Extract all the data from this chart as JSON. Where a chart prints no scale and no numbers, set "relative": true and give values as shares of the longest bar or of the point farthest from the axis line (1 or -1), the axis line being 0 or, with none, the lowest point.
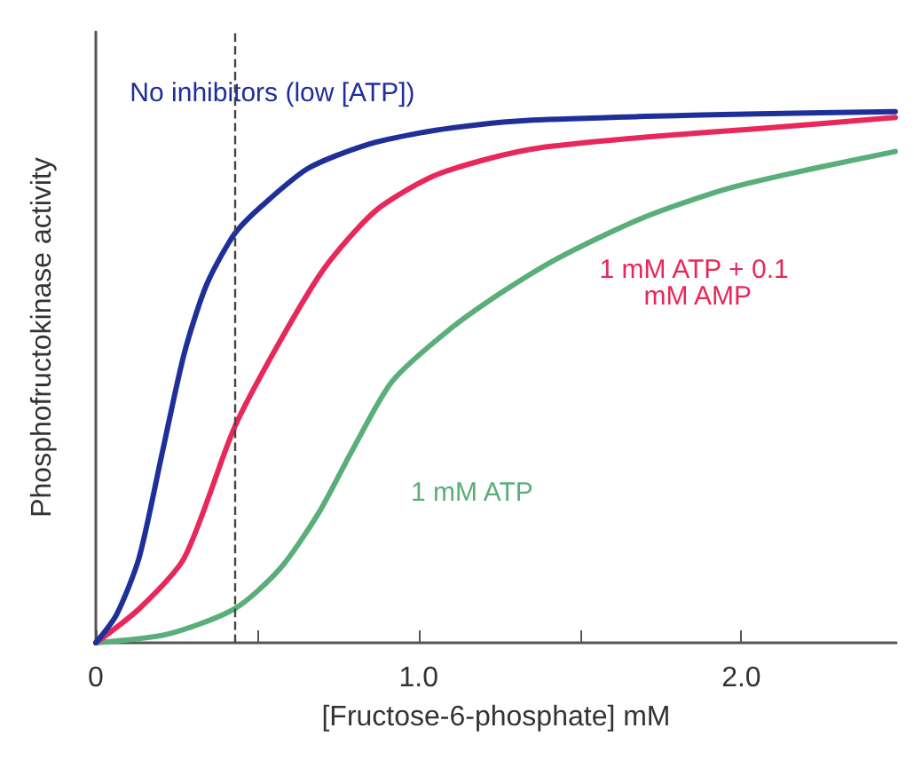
{
  "chart_data": {
    "type": "line",
    "xlabel": "[Fructose-6-phosphate] mM",
    "ylabel": "Phosphofructokinase activity",
    "relative": true,
    "grid": false,
    "legend": false,
    "marker": "none",
    "line_style": "solid",
    "xlim": [
      0,
      2.48
    ],
    "xticks": [
      0,
      {
        "value": 0.5,
        "label": null
      },
      {
        "value": 1,
        "label": "1.0"
      },
      {
        "value": 1.5,
        "label": null
      },
      {
        "value": 2,
        "label": "2.0"
      }
    ],
    "ref_lines": [
      {
        "axis": "x",
        "value": 0.43,
        "color": "#444444",
        "line_style": "dashed"
      }
    ],
    "series": [
      {
        "name": "1 mM ATP",
        "color": "#5aae7a",
        "x": [
          0,
          0.221,
          0.43,
          0.57,
          0.692,
          0.796,
          0.918,
          1.092,
          1.266,
          1.441,
          1.702,
          1.963,
          2.224,
          2.477
        ],
        "values": [
          0,
          0.016,
          0.064,
          0.139,
          0.246,
          0.364,
          0.492,
          0.588,
          0.663,
          0.727,
          0.802,
          0.856,
          0.893,
          0.925
        ]
      },
      {
        "name": "1 mM ATP + 0.1 mM AMP",
        "color": "#e8285a",
        "x": [
          0,
          0.134,
          0.274,
          0.43,
          0.57,
          0.709,
          0.866,
          1.04,
          1.214,
          1.389,
          1.702,
          2.05,
          2.477
        ],
        "values": [
          0,
          0.064,
          0.16,
          0.406,
          0.567,
          0.706,
          0.813,
          0.877,
          0.911,
          0.933,
          0.952,
          0.968,
          0.989
        ]
      },
      {
        "name": "No inhibitors (low [ATP])",
        "color": "#1f2f9a",
        "x": [
          0,
          0.064,
          0.134,
          0.204,
          0.274,
          0.343,
          0.43,
          0.517,
          0.657,
          0.831,
          1.005,
          1.179,
          1.354,
          1.702,
          2.05,
          2.477
        ],
        "values": [
          0,
          0.053,
          0.16,
          0.353,
          0.545,
          0.674,
          0.77,
          0.824,
          0.893,
          0.936,
          0.96,
          0.975,
          0.984,
          0.991,
          0.996,
          1
        ]
      }
    ]
  }
}
